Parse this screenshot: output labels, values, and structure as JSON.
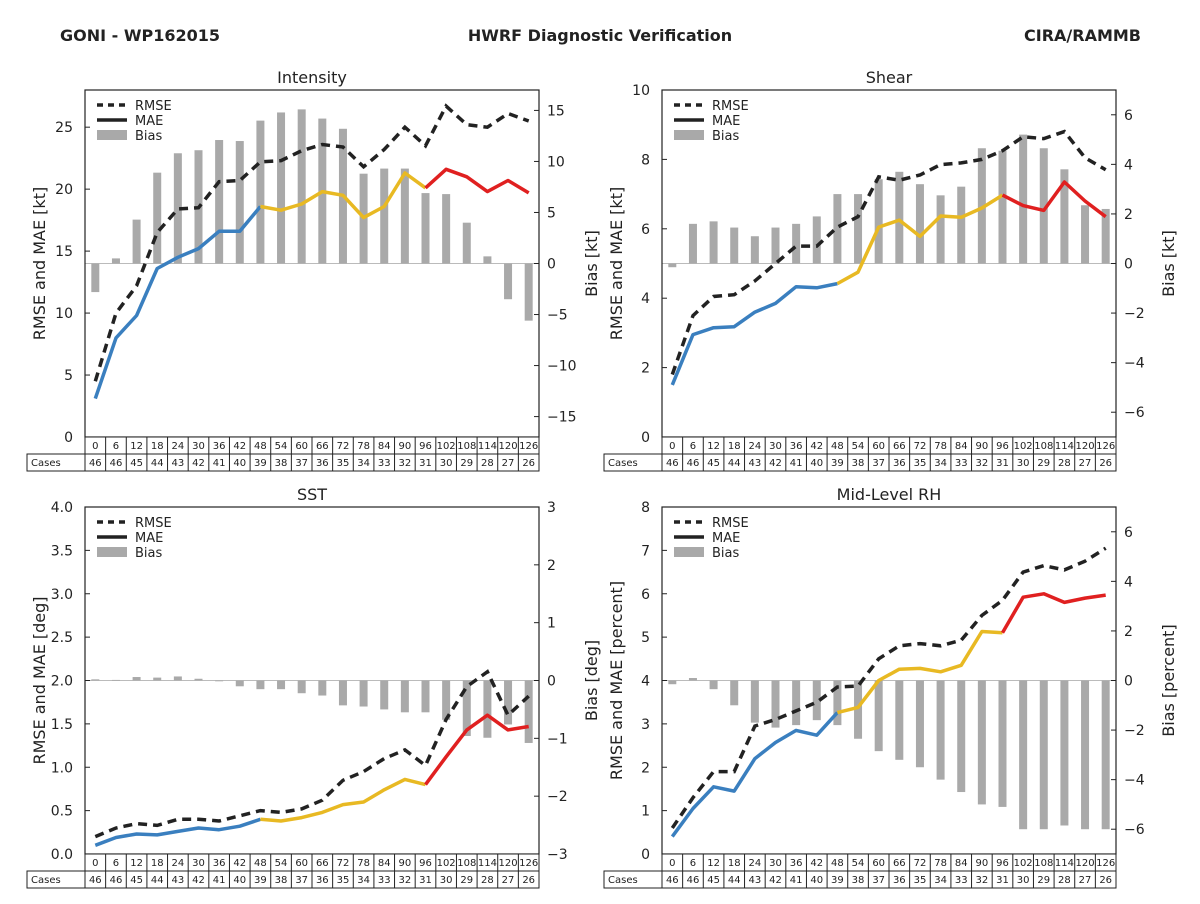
{
  "header": {
    "left": "GONI - WP162015",
    "center": "HWRF Diagnostic Verification",
    "right": "CIRA/RAMMB"
  },
  "colors": {
    "rmse": "#222222",
    "mae_early": "#3a7fbf",
    "mae_mid": "#e8b923",
    "mae_late": "#e02020",
    "bias": "#a9a9a9"
  },
  "legend": {
    "rmse": "RMSE",
    "mae": "MAE",
    "bias": "Bias"
  },
  "table": {
    "cases_label": "Cases",
    "hours": [
      "0",
      "6",
      "12",
      "18",
      "24",
      "30",
      "36",
      "42",
      "48",
      "54",
      "60",
      "66",
      "72",
      "78",
      "84",
      "90",
      "96",
      "102",
      "108",
      "114",
      "120",
      "126"
    ],
    "cases": [
      "46",
      "46",
      "45",
      "44",
      "43",
      "42",
      "41",
      "40",
      "39",
      "38",
      "37",
      "36",
      "35",
      "34",
      "33",
      "32",
      "31",
      "30",
      "29",
      "28",
      "27",
      "26"
    ]
  },
  "chart_data": [
    {
      "type": "line",
      "title": "Intensity",
      "ylabel": "RMSE and MAE [kt]",
      "y2label": "Bias [kt]",
      "ylim": [
        0,
        28
      ],
      "y2lim": [
        -17,
        17
      ],
      "yticks": [
        "0",
        "5",
        "10",
        "15",
        "20",
        "25"
      ],
      "y2ticks": [
        "−15",
        "−10",
        "−5",
        "0",
        "5",
        "10",
        "15"
      ],
      "x": [
        0,
        6,
        12,
        18,
        24,
        30,
        36,
        42,
        48,
        54,
        60,
        66,
        72,
        78,
        84,
        90,
        96,
        102,
        108,
        114,
        120,
        126
      ],
      "series": [
        {
          "name": "RMSE",
          "values": [
            4.5,
            10,
            12.2,
            16.5,
            18.4,
            18.5,
            20.6,
            20.7,
            22.2,
            22.3,
            23.1,
            23.6,
            23.4,
            21.8,
            23.2,
            25,
            23.5,
            26.7,
            25.2,
            25,
            26.1,
            25.5
          ]
        },
        {
          "name": "MAE",
          "values": [
            3.1,
            8,
            9.8,
            13.6,
            14.5,
            15.2,
            16.6,
            16.6,
            18.6,
            18.3,
            18.8,
            19.8,
            19.5,
            17.7,
            18.6,
            21.3,
            20.1,
            21.6,
            21,
            19.8,
            20.7,
            19.7
          ]
        },
        {
          "name": "Bias",
          "values": [
            -2.8,
            0.5,
            4.3,
            8.9,
            10.8,
            11.1,
            12.1,
            12,
            14,
            14.8,
            15.1,
            14.2,
            13.2,
            8.8,
            9.3,
            9.3,
            6.9,
            6.8,
            4,
            0.7,
            -3.5,
            -5.6
          ]
        }
      ]
    },
    {
      "type": "line",
      "title": "Shear",
      "ylabel": "RMSE and MAE [kt]",
      "y2label": "Bias [kt]",
      "ylim": [
        0,
        10
      ],
      "y2lim": [
        -7,
        7
      ],
      "yticks": [
        "0",
        "2",
        "4",
        "6",
        "8",
        "10"
      ],
      "y2ticks": [
        "−6",
        "−4",
        "−2",
        "0",
        "2",
        "4",
        "6"
      ],
      "x": [
        0,
        6,
        12,
        18,
        24,
        30,
        36,
        42,
        48,
        54,
        60,
        66,
        72,
        78,
        84,
        90,
        96,
        102,
        108,
        114,
        120,
        126
      ],
      "series": [
        {
          "name": "RMSE",
          "values": [
            1.8,
            3.5,
            4.05,
            4.1,
            4.5,
            5,
            5.5,
            5.5,
            6.05,
            6.35,
            7.5,
            7.4,
            7.55,
            7.85,
            7.9,
            8,
            8.25,
            8.65,
            8.6,
            8.8,
            8.05,
            7.7
          ]
        },
        {
          "name": "MAE",
          "values": [
            1.5,
            2.95,
            3.15,
            3.18,
            3.6,
            3.85,
            4.33,
            4.3,
            4.42,
            4.75,
            6.05,
            6.25,
            5.78,
            6.37,
            6.33,
            6.6,
            6.97,
            6.67,
            6.53,
            7.35,
            6.8,
            6.35
          ]
        },
        {
          "name": "Bias",
          "values": [
            -0.15,
            1.6,
            1.7,
            1.45,
            1.1,
            1.45,
            1.6,
            1.9,
            2.8,
            2.8,
            3.4,
            3.7,
            3.2,
            2.75,
            3.1,
            4.65,
            4.55,
            5.2,
            4.65,
            3.8,
            2.35,
            2.2
          ]
        }
      ]
    },
    {
      "type": "line",
      "title": "SST",
      "ylabel": "RMSE and MAE [deg]",
      "y2label": "Bias [deg]",
      "ylim": [
        0,
        4
      ],
      "y2lim": [
        -3,
        3
      ],
      "yticks": [
        "0.0",
        "0.5",
        "1.0",
        "1.5",
        "2.0",
        "2.5",
        "3.0",
        "3.5",
        "4.0"
      ],
      "y2ticks": [
        "−3",
        "−2",
        "−1",
        "0",
        "1",
        "2",
        "3"
      ],
      "x": [
        0,
        6,
        12,
        18,
        24,
        30,
        36,
        42,
        48,
        54,
        60,
        66,
        72,
        78,
        84,
        90,
        96,
        102,
        108,
        114,
        120,
        126
      ],
      "series": [
        {
          "name": "RMSE",
          "values": [
            0.2,
            0.3,
            0.35,
            0.33,
            0.4,
            0.4,
            0.38,
            0.44,
            0.5,
            0.48,
            0.52,
            0.62,
            0.85,
            0.95,
            1.1,
            1.2,
            1.02,
            1.55,
            1.93,
            2.1,
            1.6,
            1.82
          ]
        },
        {
          "name": "MAE",
          "values": [
            0.1,
            0.19,
            0.23,
            0.22,
            0.26,
            0.3,
            0.28,
            0.32,
            0.4,
            0.38,
            0.42,
            0.48,
            0.57,
            0.6,
            0.74,
            0.86,
            0.8,
            1.12,
            1.43,
            1.6,
            1.43,
            1.47
          ]
        },
        {
          "name": "Bias",
          "values": [
            0.02,
            0.01,
            0.06,
            0.05,
            0.07,
            0.03,
            0,
            -0.1,
            -0.15,
            -0.15,
            -0.22,
            -0.26,
            -0.43,
            -0.45,
            -0.5,
            -0.55,
            -0.55,
            -0.68,
            -0.96,
            -0.99,
            -0.76,
            -1.08
          ]
        }
      ]
    },
    {
      "type": "line",
      "title": "Mid-Level RH",
      "ylabel": "RMSE and MAE [percent]",
      "y2label": "Bias [percent]",
      "ylim": [
        0,
        8
      ],
      "y2lim": [
        -7,
        7
      ],
      "yticks": [
        "0",
        "1",
        "2",
        "3",
        "4",
        "5",
        "6",
        "7",
        "8"
      ],
      "y2ticks": [
        "−6",
        "−4",
        "−2",
        "0",
        "2",
        "4",
        "6"
      ],
      "x": [
        0,
        6,
        12,
        18,
        24,
        30,
        36,
        42,
        48,
        54,
        60,
        66,
        72,
        78,
        84,
        90,
        96,
        102,
        108,
        114,
        120,
        126
      ],
      "series": [
        {
          "name": "RMSE",
          "values": [
            0.6,
            1.3,
            1.9,
            1.9,
            2.95,
            3.1,
            3.3,
            3.5,
            3.85,
            3.87,
            4.5,
            4.8,
            4.85,
            4.8,
            4.93,
            5.5,
            5.85,
            6.5,
            6.65,
            6.55,
            6.75,
            7.05
          ]
        },
        {
          "name": "MAE",
          "values": [
            0.4,
            1.05,
            1.55,
            1.45,
            2.2,
            2.57,
            2.85,
            2.74,
            3.26,
            3.38,
            4,
            4.26,
            4.28,
            4.2,
            4.35,
            5.13,
            5.1,
            5.92,
            6,
            5.8,
            5.9,
            5.97
          ]
        },
        {
          "name": "Bias",
          "values": [
            -0.15,
            0.1,
            -0.35,
            -1,
            -1.7,
            -1.9,
            -1.8,
            -1.6,
            -1.8,
            -2.35,
            -2.85,
            -3.2,
            -3.5,
            -4,
            -4.5,
            -5,
            -5.1,
            -6,
            -6,
            -5.85,
            -6,
            -6
          ]
        }
      ]
    }
  ]
}
